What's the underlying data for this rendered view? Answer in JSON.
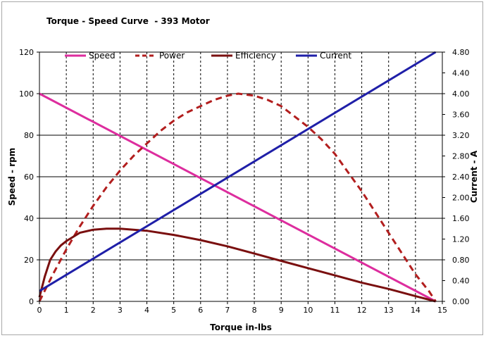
{
  "chart_data": {
    "type": "line",
    "title": "Torque - Speed Curve  - 393 Motor",
    "xlabel": "Torque in-lbs",
    "ylabel": "Speed - rpm",
    "y2label": "Current - A",
    "xlim": [
      0,
      15
    ],
    "ylim": [
      0,
      120
    ],
    "y2lim": [
      0,
      4.8
    ],
    "x_ticks": [
      "0",
      "1",
      "2",
      "3",
      "4",
      "5",
      "6",
      "7",
      "8",
      "9",
      "10",
      "11",
      "12",
      "13",
      "14",
      "15"
    ],
    "y_ticks": [
      "0",
      "20",
      "40",
      "60",
      "80",
      "100",
      "120"
    ],
    "y2_ticks": [
      "0.00",
      "0.40",
      "0.80",
      "1.20",
      "1.60",
      "2.00",
      "2.40",
      "2.80",
      "3.20",
      "3.60",
      "4.00",
      "4.40",
      "4.80"
    ],
    "grid": true,
    "legend_position": "top",
    "series": [
      {
        "name": "Speed",
        "color": "#dd2d9e",
        "style": "solid",
        "axis": "left",
        "points": [
          [
            0,
            100
          ],
          [
            14.75,
            0
          ]
        ]
      },
      {
        "name": "Power",
        "color": "#b21e1e",
        "style": "dashed",
        "axis": "left",
        "points": [
          [
            0,
            0
          ],
          [
            0.5,
            13
          ],
          [
            1,
            25
          ],
          [
            1.5,
            36
          ],
          [
            2,
            46
          ],
          [
            2.5,
            55
          ],
          [
            3,
            63
          ],
          [
            3.5,
            70
          ],
          [
            4,
            76
          ],
          [
            4.5,
            82
          ],
          [
            5,
            87
          ],
          [
            5.5,
            91
          ],
          [
            6,
            94
          ],
          [
            6.5,
            97
          ],
          [
            7,
            99
          ],
          [
            7.4,
            100
          ],
          [
            8,
            99
          ],
          [
            8.5,
            97
          ],
          [
            9,
            94
          ],
          [
            9.5,
            89
          ],
          [
            10,
            84
          ],
          [
            10.5,
            78
          ],
          [
            11,
            71
          ],
          [
            11.5,
            62
          ],
          [
            12,
            53
          ],
          [
            12.5,
            43
          ],
          [
            13,
            33
          ],
          [
            13.5,
            23
          ],
          [
            14,
            13
          ],
          [
            14.5,
            5
          ],
          [
            14.75,
            0
          ]
        ]
      },
      {
        "name": "Efficiency",
        "color": "#7a0f0f",
        "style": "solid",
        "axis": "left",
        "points": [
          [
            0,
            2
          ],
          [
            0.2,
            12
          ],
          [
            0.4,
            20
          ],
          [
            0.6,
            24
          ],
          [
            0.8,
            27
          ],
          [
            1,
            29
          ],
          [
            1.5,
            33
          ],
          [
            2,
            34.5
          ],
          [
            2.5,
            35
          ],
          [
            3,
            35
          ],
          [
            3.5,
            34.5
          ],
          [
            4,
            34
          ],
          [
            5,
            32
          ],
          [
            6,
            29.5
          ],
          [
            7,
            26.5
          ],
          [
            8,
            23
          ],
          [
            9,
            19.5
          ],
          [
            10,
            16
          ],
          [
            11,
            12.5
          ],
          [
            12,
            9
          ],
          [
            13,
            6
          ],
          [
            14,
            2.5
          ],
          [
            14.75,
            0
          ]
        ]
      },
      {
        "name": "Current",
        "color": "#1f1fa8",
        "style": "solid",
        "axis": "right",
        "points": [
          [
            0,
            0.2
          ],
          [
            14.75,
            4.8
          ]
        ]
      }
    ]
  }
}
